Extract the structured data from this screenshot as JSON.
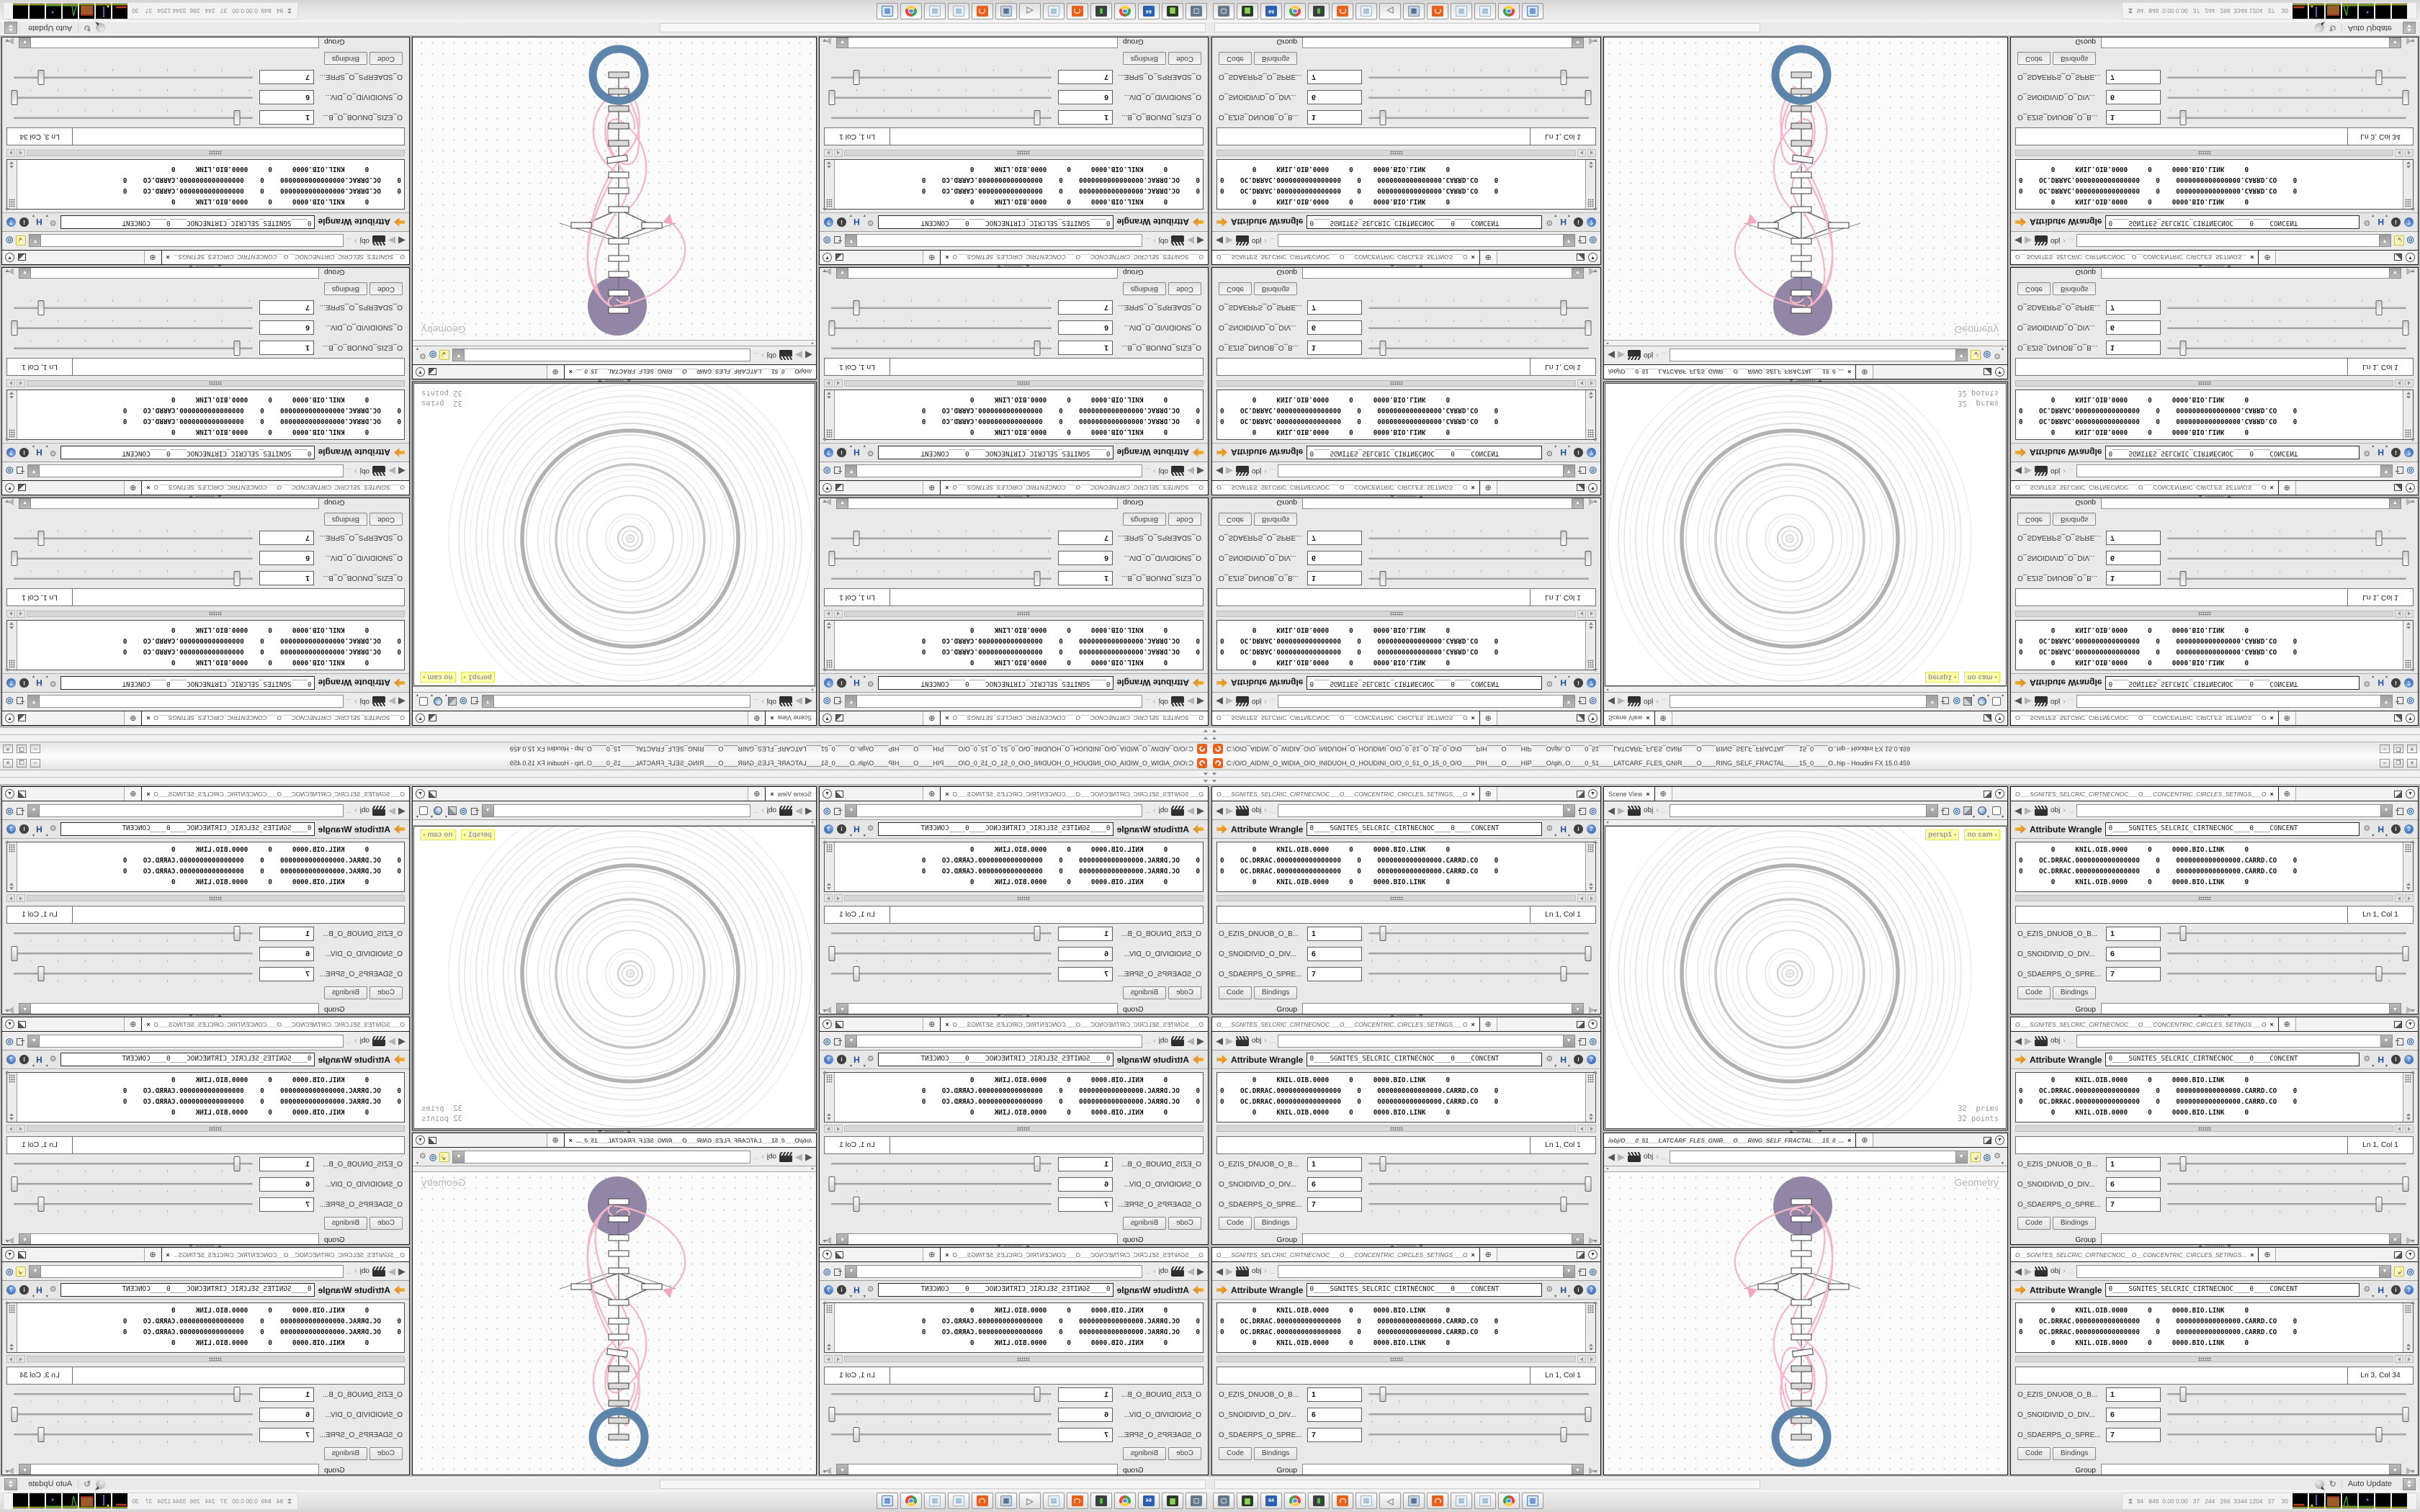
{
  "window": {
    "title": "C:/O/O_AIDIW_O_WIDIA_O/O_INIDUOH_O_HOUDINI_O/O_0_51_O_15_0_O/O____PIH____O____HIP____O/qih..O____0_51____LATCARF_FLES_GNIR____O____RING_SELF_FRACTAL____15_0____O..hip - Houdini FX 15.0.459",
    "minimize": "–",
    "maximize": "❐",
    "close": "×"
  },
  "icons": {
    "close": "×",
    "new_tab": "⊕",
    "menu_caret": "▼",
    "dropdown_caret": "▼",
    "back": "◀",
    "forward": "▶",
    "chevron": "›",
    "ellipsis": "...",
    "gear": "⚙",
    "language": "H",
    "info": "i",
    "help": "?",
    "radial": "◎",
    "caret_small": "▾",
    "refresh": "↻",
    "speaker": "◁",
    "grid": "▦",
    "page": "▤",
    "screen": "▮",
    "square": "▢",
    "drive": "▆",
    "floppy_label": "64",
    "image": "▨"
  },
  "panes": [
    {
      "tab_title": "O___SGNITES_SELCRIC_CIRTNECNOC___O___CONCENTRIC_CIRCLES_SETINGS___O",
      "nav_context": "obj",
      "nav_variant": "pin",
      "node_type": "Attribute Wrangle",
      "node_name": "0____SGNITES_SELCRIC_CIRTNECNOC____0____CONCENT",
      "code_lines": [
        "        0     KNIL.OIB.0000     0     0000.BIO.LINK     0",
        "0    OC.DRRAC.0000000000000000    0    0000000000000000.CARRD.CO    0",
        "0    OC.DRRAC.0000000000000000    0    0000000000000000.CARRD.CO    0",
        "        0     KNIL.OIB.0000     0     0000.BIO.LINK     0"
      ],
      "line_col": "Ln 1, Col 1",
      "params": [
        {
          "label": "O_EZIS_DNUOB_O_B...",
          "value": "1",
          "slider_pct": 7
        },
        {
          "label": "O_SNOIDIVID_O_DIV...",
          "value": "6",
          "slider_pct": 99
        },
        {
          "label": "O_SDAERPS_O_SPRE...",
          "value": "7",
          "slider_pct": 88
        }
      ],
      "subtab_code": "Code",
      "subtab_bindings": "Bindings",
      "group_label": "Group"
    },
    {
      "tab_title": "O___SGNITES_SELCRIC_CIRTNECNOC___O___CONCENTRIC_CIRCLES_SETINGS___O",
      "nav_context": "obj",
      "nav_variant": "pin",
      "node_type": "Attribute Wrangle",
      "node_name": "0____SGNITES_SELCRIC_CIRTNECNOC____0____CONCENT",
      "code_lines": [
        "        0     KNIL.OIB.0000     0     0000.BIO.LINK     0",
        "0    OC.DRRAC.0000000000000000    0    0000000000000000.CARRD.CO    0",
        "0    OC.DRRAC.0000000000000000    0    0000000000000000.CARRD.CO    0",
        "        0     KNIL.OIB.0000     0     0000.BIO.LINK     0"
      ],
      "line_col": "Ln 1, Col 1",
      "params": [
        {
          "label": "O_EZIS_DNUOB_O_B...",
          "value": "1",
          "slider_pct": 7
        },
        {
          "label": "O_SNOIDIVID_O_DIV...",
          "value": "6",
          "slider_pct": 99
        },
        {
          "label": "O_SDAERPS_O_SPRE...",
          "value": "7",
          "slider_pct": 88
        }
      ],
      "subtab_code": "Code",
      "subtab_bindings": "Bindings",
      "group_label": "Group"
    },
    {
      "tab_title": "O___SGNITES_SELCRIC_CIRTNECNOC___O___CONCENTRIC_CIRCLES_SETINGS___O",
      "nav_context": "obj",
      "nav_variant": "pin",
      "node_type": "Attribute Wrangle",
      "node_name": "0____SGNITES_SELCRIC_CIRTNECNOC____0____CONCENT",
      "code_lines": [
        "        0     KNIL.OIB.0000     0     0000.BIO.LINK     0",
        "0    OC.DRRAC.0000000000000000    0    0000000000000000.CARRD.CO    0",
        "0    OC.DRRAC.0000000000000000    0    0000000000000000.CARRD.CO    0",
        "        0     KNIL.OIB.0000     0     0000.BIO.LINK     0"
      ],
      "line_col": "Ln 1, Col 1",
      "params": [
        {
          "label": "O_EZIS_DNUOB_O_B...",
          "value": "1",
          "slider_pct": 7
        },
        {
          "label": "O_SNOIDIVID_O_DIV...",
          "value": "6",
          "slider_pct": 99
        },
        {
          "label": "O_SDAERPS_O_SPRE...",
          "value": "7",
          "slider_pct": 88
        }
      ],
      "subtab_code": "Code",
      "subtab_bindings": "Bindings",
      "group_label": "Group"
    },
    {
      "tab_title": "O___SGNITES_SELCRIC_CIRTNECNOC___O___CONCENTRIC_CIRCLES_SETINGS___O",
      "nav_context": "obj",
      "nav_variant": "pin",
      "node_type": "Attribute Wrangle",
      "node_name": "0____SGNITES_SELCRIC_CIRTNECNOC____0____CONCENT",
      "code_lines": [
        "        0     KNIL.OIB.0000     0     0000.BIO.LINK     0",
        "0    OC.DRRAC.0000000000000000    0    0000000000000000.CARRD.CO    0",
        "0    OC.DRRAC.0000000000000000    0    0000000000000000.CARRD.CO    0",
        "        0     KNIL.OIB.0000     0     0000.BIO.LINK     0"
      ],
      "line_col": "Ln 1, Col 1",
      "params": [
        {
          "label": "O_EZIS_DNUOB_O_B...",
          "value": "1",
          "slider_pct": 7
        },
        {
          "label": "O_SNOIDIVID_O_DIV...",
          "value": "6",
          "slider_pct": 99
        },
        {
          "label": "O_SDAERPS_O_SPRE...",
          "value": "7",
          "slider_pct": 88
        }
      ],
      "subtab_code": "Code",
      "subtab_bindings": "Bindings",
      "group_label": "Group"
    },
    {
      "tab_title": "O___SGNITES_SELCRIC_CIRTNECNOC___O___CONCENTRIC_CIRCLES_SETINGS___O",
      "nav_context": "obj",
      "nav_variant": "pin",
      "node_type": "Attribute Wrangle",
      "node_name": "0____SGNITES_SELCRIC_CIRTNECNOC____0____CONCENT",
      "code_lines": [
        "        0     KNIL.OIB.0000     0     0000.BIO.LINK     0",
        "0    OC.DRRAC.0000000000000000    0    0000000000000000.CARRD.CO    0",
        "0    OC.DRRAC.0000000000000000    0    0000000000000000.CARRD.CO    0",
        "        0     KNIL.OIB.0000     0     0000.BIO.LINK     0"
      ],
      "line_col": "Ln 1, Col 1",
      "params": [
        {
          "label": "O_EZIS_DNUOB_O_B...",
          "value": "1",
          "slider_pct": 7
        },
        {
          "label": "O_SNOIDIVID_O_DIV...",
          "value": "6",
          "slider_pct": 99
        },
        {
          "label": "O_SDAERPS_O_SPRE...",
          "value": "7",
          "slider_pct": 88
        }
      ],
      "subtab_code": "Code",
      "subtab_bindings": "Bindings",
      "group_label": "Group"
    },
    {
      "tab_title": "O__SGNITES_SELCRIC_CIRTNECNOC__O__CONCENTRIC_CIRCLES_SETINGS...",
      "nav_context": "obj",
      "nav_variant": "bulb",
      "node_type": "Attribute Wrangle",
      "node_name": "0____SGNITES_SELCRIC_CIRTNECNOC____0____CONCENT",
      "code_lines": [
        "        0     KNIL.OIB.0000     0     0000.BIO.LINK     0",
        "0    OC.DRRAC.0000000000000000    0    0000000000000000.CARRD.CO    0",
        "0    OC.DRRAC.0000000000000000    0    0000000000000000.CARRD.CO    0",
        "        0     KNIL.OIB.0000     0     0000.BIO.LINK     0"
      ],
      "line_col": "Ln 3, Col 34",
      "params": [
        {
          "label": "O_EZIS_DNUOB_O_B...",
          "value": "1",
          "slider_pct": 7
        },
        {
          "label": "O_SNOIDIVID_O_DIV...",
          "value": "6",
          "slider_pct": 99
        },
        {
          "label": "O_SDAERPS_O_SPRE...",
          "value": "7",
          "slider_pct": 88
        }
      ],
      "subtab_code": "Code",
      "subtab_bindings": "Bindings",
      "group_label": "Group"
    }
  ],
  "scene_view": {
    "tab_title": "Scene View",
    "nav_context": "obj",
    "badges": [
      {
        "label": "persp1"
      },
      {
        "label": "no cam"
      }
    ],
    "stats_prims": "32  prims",
    "stats_points": "32 points"
  },
  "network": {
    "tab_title": "/obj/O___0_51___LATCARF_FLES_GNIR___O___RING_SELF_FRACTAL___15_0_...",
    "nav_context": "obj",
    "overlay_label": "Geometry"
  },
  "statusbar": {
    "auto_update_label": "Auto Update"
  },
  "taskbar": {
    "icons": [
      {
        "name": "system-settings"
      },
      {
        "name": "removable-drive"
      },
      {
        "name": "floppy-64"
      },
      {
        "name": "chrome-browser"
      },
      {
        "name": "task-monitor"
      },
      {
        "name": "houdini-app"
      },
      {
        "name": "notepad"
      },
      {
        "name": "volume"
      },
      {
        "name": "calculator"
      },
      {
        "name": "houdini-app"
      },
      {
        "name": "notepad"
      },
      {
        "name": "notepad"
      },
      {
        "name": "chrome-browser"
      },
      {
        "name": "image-viewer"
      }
    ],
    "tray_numbers": "94   849  0.00 0.00   37   244   266  3344 1204   37    30"
  },
  "colors": {
    "houdini_orange": "#e9601a",
    "node_purple": "#9286a6",
    "ring_blue": "#5d85ab",
    "wire_pink": "#f4b6c6",
    "badge_yellow": "#ffffb0"
  }
}
